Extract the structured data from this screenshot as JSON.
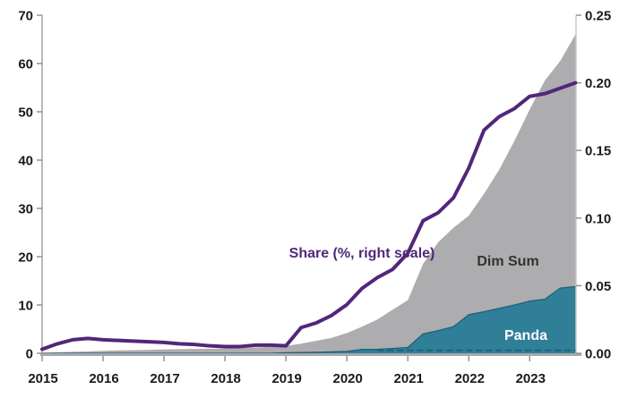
{
  "chart_data": {
    "type": "area",
    "title": "",
    "subtitle": "",
    "grid": false,
    "legend_position": "none",
    "stacked": true,
    "x": [
      2015,
      2015.25,
      2015.5,
      2015.75,
      2016,
      2016.25,
      2016.5,
      2016.75,
      2017,
      2017.25,
      2017.5,
      2017.75,
      2018,
      2018.25,
      2018.5,
      2018.75,
      2019,
      2019.25,
      2019.5,
      2019.75,
      2020,
      2020.25,
      2020.5,
      2020.75,
      2021,
      2021.25,
      2021.5,
      2021.75,
      2022,
      2022.25,
      2022.5,
      2022.75,
      2023,
      2023.25,
      2023.5,
      2023.75
    ],
    "x_axis": {
      "tick_labels": [
        "2015",
        "2016",
        "2017",
        "2018",
        "2019",
        "2020",
        "2021",
        "2022",
        "2023"
      ],
      "tick_values": [
        2015,
        2016,
        2017,
        2018,
        2019,
        2020,
        2021,
        2022,
        2023
      ],
      "range": [
        2015,
        2023.76
      ]
    },
    "left_axis": {
      "min": 0,
      "max": 70,
      "tick_labels": [
        "0",
        "10",
        "20",
        "30",
        "40",
        "50",
        "60",
        "70"
      ],
      "tick_values": [
        0,
        10,
        20,
        30,
        40,
        50,
        60,
        70
      ]
    },
    "right_axis": {
      "min": 0,
      "max": 0.25,
      "tick_labels": [
        "0.00",
        "0.05",
        "0.10",
        "0.15",
        "0.20",
        "0.25"
      ],
      "tick_values": [
        0,
        0.05,
        0.1,
        0.15,
        0.2,
        0.25
      ]
    },
    "series": [
      {
        "name": "Dim Sum",
        "type": "area",
        "axis": "left",
        "color": "#adacaf",
        "values": [
          0.1,
          0.2,
          0.3,
          0.4,
          0.5,
          0.6,
          0.65,
          0.7,
          0.8,
          0.85,
          0.9,
          0.95,
          1.0,
          1.1,
          1.2,
          1.35,
          1.4,
          1.85,
          2.4,
          2.9,
          3.8,
          4.7,
          6.2,
          8.0,
          9.8,
          14.5,
          18.3,
          20.5,
          20.5,
          24.4,
          28.7,
          34.0,
          39.7,
          45.3,
          47.0,
          52.2
        ]
      },
      {
        "name": "Panda",
        "type": "area",
        "axis": "left",
        "color": "#2f7f99",
        "edge_color": "#1d627a",
        "values": [
          0,
          0,
          0,
          0,
          0,
          0,
          0,
          0,
          0,
          0,
          0,
          0,
          0,
          0,
          0,
          0,
          0.1,
          0.15,
          0.2,
          0.3,
          0.4,
          0.8,
          0.8,
          1.0,
          1.2,
          4.0,
          4.7,
          5.5,
          8.0,
          8.6,
          9.3,
          10.0,
          10.8,
          11.2,
          13.5,
          13.8
        ]
      },
      {
        "name": "Share (%, right scale)",
        "type": "line",
        "axis": "right",
        "color": "#512779",
        "values": [
          0.003,
          0.007,
          0.01,
          0.011,
          0.01,
          0.0095,
          0.009,
          0.0085,
          0.008,
          0.007,
          0.0065,
          0.0055,
          0.005,
          0.005,
          0.006,
          0.006,
          0.0055,
          0.019,
          0.0225,
          0.028,
          0.036,
          0.048,
          0.056,
          0.062,
          0.074,
          0.098,
          0.104,
          0.115,
          0.137,
          0.165,
          0.175,
          0.181,
          0.19,
          0.192,
          0.196,
          0.2
        ]
      }
    ],
    "dashed_zero_line": {
      "from_x": 2020.5,
      "to_x": 2023.75,
      "value": 0.6,
      "color": "#1d627a"
    },
    "annotations": [
      {
        "text": "Share (%, right scale)",
        "x": 404,
        "y": 288,
        "color": "#512779",
        "anchor": "middle"
      },
      {
        "text": "Dim Sum",
        "x": 567,
        "y": 297,
        "color": "#333333",
        "anchor": "middle"
      },
      {
        "text": "Panda",
        "x": 587,
        "y": 380,
        "color": "#ffffff",
        "anchor": "middle"
      }
    ]
  },
  "colors": {
    "background": "#ffffff",
    "left_axis_line": "#8c8c8c",
    "right_axis_line": "#bcbcbc",
    "bottom_axis_line": "#a8a8a8",
    "tick_mark": "#8c8c8c",
    "tick_label": "#1a1a1a"
  }
}
